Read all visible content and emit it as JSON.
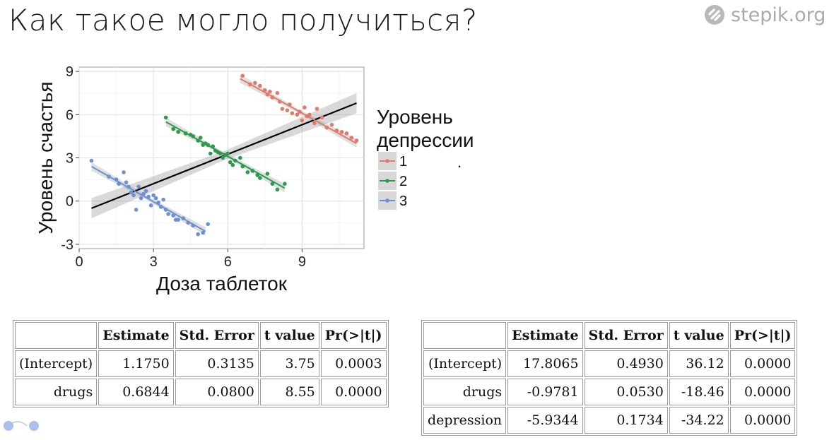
{
  "slide": {
    "title": "Как такое могло получиться?",
    "brand": "stepik.org",
    "brand_icon": "stepik-logo-icon"
  },
  "chart_data": {
    "type": "scatter",
    "xlabel": "Доза таблеток",
    "ylabel": "Уровень счастья",
    "xlim": [
      0,
      11.5
    ],
    "ylim": [
      -3.3,
      9.3
    ],
    "xticks": [
      0,
      3,
      6,
      9
    ],
    "yticks": [
      -3,
      0,
      3,
      6,
      9
    ],
    "grid": true,
    "panel_background": "#ffffff",
    "legend": {
      "title_lines": [
        "Уровень",
        "депрессии"
      ],
      "placement": "right"
    },
    "overall_fit": {
      "x": [
        0.5,
        11.2
      ],
      "y": [
        -0.5,
        6.8
      ],
      "color": "#000000",
      "band": 0.7
    },
    "series": [
      {
        "name": "1",
        "color": "#E07B6B",
        "fit": {
          "x": [
            6.5,
            11.2
          ],
          "y": [
            8.5,
            4.0
          ]
        },
        "x": [
          6.6,
          6.9,
          7.1,
          7.3,
          7.5,
          7.6,
          7.7,
          7.8,
          8.0,
          8.1,
          8.2,
          8.4,
          8.5,
          8.6,
          8.8,
          8.9,
          9.0,
          9.1,
          9.2,
          9.3,
          9.5,
          9.6,
          9.8,
          10.0,
          10.2,
          10.4,
          10.6,
          10.8,
          11.0,
          11.2
        ],
        "y": [
          8.7,
          8.1,
          8.2,
          8.0,
          7.7,
          7.4,
          7.6,
          7.2,
          7.5,
          6.9,
          6.4,
          6.3,
          6.7,
          6.1,
          6.0,
          6.2,
          5.6,
          6.5,
          5.9,
          6.0,
          5.4,
          6.4,
          5.8,
          5.1,
          5.3,
          4.9,
          4.8,
          4.7,
          4.4,
          4.2
        ]
      },
      {
        "name": "2",
        "color": "#2E9A4E",
        "fit": {
          "x": [
            3.5,
            8.3
          ],
          "y": [
            5.5,
            0.9
          ]
        },
        "x": [
          3.5,
          3.8,
          4.0,
          4.3,
          4.5,
          4.6,
          4.8,
          4.9,
          5.0,
          5.1,
          5.2,
          5.3,
          5.4,
          5.5,
          5.6,
          5.7,
          5.8,
          5.9,
          6.0,
          6.1,
          6.2,
          6.3,
          6.5,
          6.6,
          6.8,
          7.0,
          7.2,
          7.3,
          7.6,
          7.8,
          8.0,
          8.3
        ],
        "y": [
          5.8,
          5.0,
          4.8,
          4.7,
          4.6,
          4.5,
          4.2,
          4.4,
          3.9,
          4.0,
          3.9,
          3.3,
          3.8,
          3.5,
          3.4,
          3.3,
          3.0,
          3.2,
          3.3,
          2.7,
          2.5,
          2.8,
          3.0,
          2.4,
          2.0,
          2.1,
          1.8,
          1.6,
          1.9,
          1.2,
          0.8,
          1.2
        ]
      },
      {
        "name": "3",
        "color": "#6D8FD4",
        "fit": {
          "x": [
            0.5,
            5.1
          ],
          "y": [
            2.4,
            -2.1
          ]
        },
        "x": [
          0.5,
          1.2,
          1.5,
          1.6,
          1.8,
          1.9,
          2.0,
          2.1,
          2.2,
          2.3,
          2.4,
          2.5,
          2.6,
          2.7,
          2.8,
          2.9,
          3.0,
          3.1,
          3.2,
          3.3,
          3.4,
          3.5,
          3.6,
          3.8,
          3.9,
          4.0,
          4.2,
          4.4,
          4.6,
          4.8,
          5.0,
          5.2
        ],
        "y": [
          2.8,
          1.7,
          1.5,
          1.2,
          2.0,
          1.3,
          1.0,
          0.6,
          0.4,
          -0.6,
          1.0,
          0.2,
          0.5,
          0.7,
          0.3,
          -0.3,
          0.4,
          0.2,
          -0.1,
          -0.4,
          0.1,
          -0.6,
          -0.9,
          -1.0,
          -1.3,
          -1.3,
          -1.2,
          -1.5,
          -1.7,
          -2.3,
          -2.2,
          -1.6
        ]
      }
    ]
  },
  "stray_dot": ".",
  "tableA": {
    "headers": [
      "",
      "Estimate",
      "Std. Error",
      "t value",
      "Pr(>|t|)"
    ],
    "rows": [
      [
        "(Intercept)",
        "1.1750",
        "0.3135",
        "3.75",
        "0.0003"
      ],
      [
        "drugs",
        "0.6844",
        "0.0800",
        "8.55",
        "0.0000"
      ]
    ]
  },
  "tableB": {
    "headers": [
      "",
      "Estimate",
      "Std. Error",
      "t value",
      "Pr(>|t|)"
    ],
    "rows": [
      [
        "(Intercept)",
        "17.8065",
        "0.4930",
        "36.12",
        "0.0000"
      ],
      [
        "drugs",
        "-0.9781",
        "0.0530",
        "-18.46",
        "0.0000"
      ],
      [
        "depression",
        "-5.9344",
        "0.1734",
        "-34.22",
        "0.0000"
      ]
    ]
  }
}
